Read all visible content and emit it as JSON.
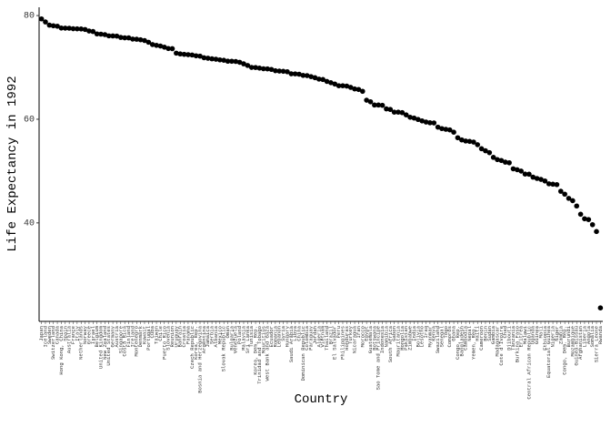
{
  "chart_data": {
    "type": "scatter",
    "x_label": "Country",
    "y_label": "Life Expectancy in 1992",
    "categories": [
      "Japan",
      "Iceland",
      "Sweden",
      "Switzerland",
      "Canada",
      "Hong Kong, China",
      "Spain",
      "Australia",
      "France",
      "Italy",
      "Netherlands",
      "Norway",
      "Greece",
      "Israel",
      "Belgium",
      "United Kingdom",
      "New Zealand",
      "United States",
      "Germany",
      "Austria",
      "Singapore",
      "Costa Rica",
      "Finland",
      "Ireland",
      "Montenegro",
      "Denmark",
      "Kuwait",
      "Portugal",
      "Cuba",
      "Taiwan",
      "Chile",
      "Puerto Rico",
      "Slovenia",
      "Reunion",
      "Uruguay",
      "Bahrain",
      "Croatia",
      "Panama",
      "Czech Republic",
      "Korea, Rep.",
      "Bosnia and Herzegovina",
      "Argentina",
      "Jamaica",
      "Serbia",
      "Albania",
      "Mexico",
      "Slovak Republic",
      "Oman",
      "Bulgaria",
      "Venezuela",
      "Poland",
      "Malaysia",
      "Sri Lanka",
      "Tunisia",
      "Korea, Dem. Rep.",
      "Trinidad and Tobago",
      "Mauritius",
      "West Bank and Gaza",
      "Ecuador",
      "Romania",
      "Lebanon",
      "Syria",
      "Hungary",
      "Saudi Arabia",
      "Libya",
      "China",
      "Dominican Republic",
      "Colombia",
      "Paraguay",
      "Jordan",
      "Algeria",
      "Vietnam",
      "Thailand",
      "Brazil",
      "El Salvador",
      "Peru",
      "Philippines",
      "Honduras",
      "Turkey",
      "Nicaragua",
      "Iran",
      "Morocco",
      "Egypt",
      "Guatemala",
      "Botswana",
      "Sao Tome and Principe",
      "Indonesia",
      "Namibia",
      "South Africa",
      "Gabon",
      "Mauritania",
      "Mongolia",
      "Pakistan",
      "Zimbabwe",
      "India",
      "Bolivia",
      "Lesotho",
      "Iraq",
      "Myanmar",
      "Kenya",
      "Swaziland",
      "Senegal",
      "Togo",
      "Comoros",
      "Ghana",
      "Congo, Rep.",
      "Bangladesh",
      "Cambodia",
      "Nepal",
      "Yemen, Rep.",
      "Haiti",
      "Cameroon",
      "Benin",
      "Sudan",
      "Gambia",
      "Madagascar",
      "Cote d'Ivoire",
      "Chad",
      "Djibouti",
      "Tanzania",
      "Burkina Faso",
      "Eritrea",
      "Malawi",
      "Central African Republic",
      "Uganda",
      "Guinea",
      "Mali",
      "Ethiopia",
      "Equatorial Guinea",
      "Nigeria",
      "Niger",
      "Zambia",
      "Congo, Dem. Rep.",
      "Burundi",
      "Mozambique",
      "Guinea-Bissau",
      "Afghanistan",
      "Liberia",
      "Angola",
      "Somalia",
      "Sierra Leone",
      "Rwanda"
    ],
    "values": [
      79.36,
      78.77,
      78.16,
      78.03,
      77.95,
      77.601,
      77.57,
      77.56,
      77.46,
      77.44,
      77.42,
      77.32,
      77.03,
      76.93,
      76.46,
      76.42,
      76.33,
      76.09,
      76.07,
      76.04,
      75.788,
      75.713,
      75.7,
      75.467,
      75.435,
      75.33,
      75.19,
      74.86,
      74.414,
      74.26,
      74.126,
      73.911,
      73.64,
      73.615,
      72.752,
      72.601,
      72.527,
      72.462,
      72.4,
      72.244,
      72.178,
      71.868,
      71.766,
      71.659,
      71.581,
      71.455,
      71.38,
      71.197,
      71.19,
      71.15,
      70.99,
      70.693,
      70.379,
      70.001,
      69.978,
      69.862,
      69.745,
      69.718,
      69.613,
      69.36,
      69.292,
      69.249,
      69.17,
      68.768,
      68.755,
      68.69,
      68.457,
      68.421,
      68.225,
      68.015,
      67.744,
      67.662,
      67.298,
      67.057,
      66.798,
      66.458,
      66.458,
      66.399,
      66.146,
      65.843,
      65.742,
      65.393,
      63.674,
      63.373,
      62.745,
      62.742,
      62.681,
      61.999,
      61.888,
      61.366,
      61.366,
      61.271,
      60.838,
      60.377,
      60.223,
      59.957,
      59.685,
      59.461,
      59.32,
      59.285,
      58.474,
      58.196,
      58.061,
      57.939,
      57.501,
      56.433,
      56.018,
      55.803,
      55.727,
      55.599,
      55.089,
      54.314,
      53.919,
      53.556,
      52.644,
      52.214,
      52.044,
      51.724,
      51.604,
      50.44,
      50.26,
      49.991,
      49.42,
      49.396,
      48.825,
      48.576,
      48.388,
      48.091,
      47.545,
      47.472,
      47.391,
      46.1,
      45.548,
      44.736,
      44.284,
      43.266,
      41.674,
      40.802,
      40.647,
      39.658,
      38.333,
      23.599
    ],
    "color": "#000000",
    "ylim": [
      21,
      81.6
    ],
    "yticks": [
      40,
      60,
      80
    ]
  }
}
